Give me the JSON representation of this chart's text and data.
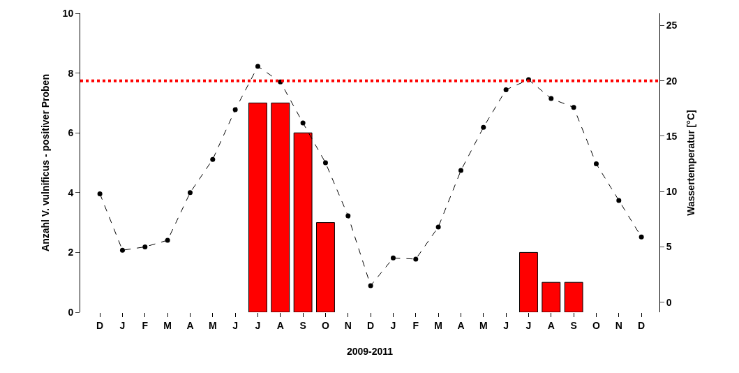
{
  "chart_data": {
    "type": "bar",
    "categories": [
      "D",
      "J",
      "F",
      "M",
      "A",
      "M",
      "J",
      "J",
      "A",
      "S",
      "O",
      "N",
      "D",
      "J",
      "F",
      "M",
      "A",
      "M",
      "J",
      "J",
      "A",
      "S",
      "O",
      "N",
      "D"
    ],
    "xlabel": "2009-2011",
    "ylabel": "Anzahl V. vulnificus - positiver Proben",
    "y2label": "Wassertemperatur [°C]",
    "ylim": [
      0,
      10
    ],
    "yticks": [
      0,
      2,
      4,
      6,
      8,
      10
    ],
    "y2lim": [
      -0.9,
      26.1
    ],
    "y2ticks": [
      0,
      5,
      10,
      15,
      20,
      25
    ],
    "series": [
      {
        "color": "#ff0000",
        "values": [
          0,
          0,
          0,
          0,
          0,
          0,
          0,
          7,
          7,
          6,
          3,
          0,
          0,
          0,
          0,
          0,
          0,
          0,
          0,
          2,
          1,
          1,
          0,
          0,
          0
        ]
      },
      {
        "type": "line",
        "axis": "y2",
        "color": "#000000",
        "marker": "circle",
        "line_style": "dashed",
        "values": [
          9.8,
          4.7,
          5.0,
          5.6,
          9.9,
          12.9,
          17.4,
          21.3,
          19.9,
          16.2,
          12.6,
          7.8,
          1.5,
          4.0,
          3.9,
          6.8,
          11.9,
          15.8,
          19.2,
          20.1,
          18.4,
          17.6,
          12.5,
          9.2,
          5.9
        ]
      }
    ],
    "ref_lines": [
      {
        "axis": "y2",
        "value": 20,
        "color": "#ff0000",
        "line_style": "dotted"
      }
    ]
  }
}
